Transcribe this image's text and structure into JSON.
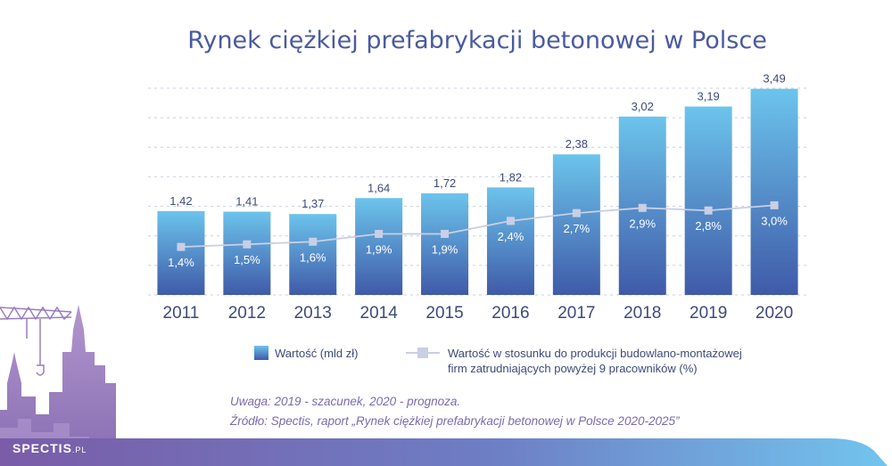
{
  "chart_data": {
    "type": "bar",
    "title": "Rynek ciężkiej prefabrykacji betonowej w Polsce",
    "categories": [
      "2011",
      "2012",
      "2013",
      "2014",
      "2015",
      "2016",
      "2017",
      "2018",
      "2019",
      "2020"
    ],
    "ylim": [
      0,
      3.5
    ],
    "grid": true,
    "series": [
      {
        "name": "Wartość (mld zł)",
        "type": "bar",
        "values": [
          1.42,
          1.41,
          1.37,
          1.64,
          1.72,
          1.82,
          2.38,
          3.02,
          3.19,
          3.49
        ],
        "labels": [
          "1,42",
          "1,41",
          "1,37",
          "1,64",
          "1,72",
          "1,82",
          "2,38",
          "3,02",
          "3,19",
          "3,49"
        ]
      },
      {
        "name_line1": "Wartość w stosunku do produkcji budowlano-montażowej",
        "name_line2": "firm zatrudniających powyżej 9 pracowników (%)",
        "type": "line",
        "values": [
          1.4,
          1.5,
          1.6,
          1.9,
          1.9,
          2.4,
          2.7,
          2.9,
          2.8,
          3.0
        ],
        "labels": [
          "1,4%",
          "1,5%",
          "1,6%",
          "1,9%",
          "1,9%",
          "2,4%",
          "2,7%",
          "2,9%",
          "2,8%",
          "3,0%"
        ]
      }
    ],
    "legend_position": "bottom",
    "notes": [
      "Uwaga: 2019 - szacunek, 2020 - prognoza.",
      "Źródło: Spectis, raport „Rynek ciężkiej prefabrykacji betonowej w Polsce 2020-2025”"
    ]
  },
  "brand": {
    "name": "SPECTIS",
    "suffix": ".PL"
  },
  "colors": {
    "title": "#4a5aa0",
    "bar_top": "#6cc4ec",
    "bar_bottom": "#3f5aa8",
    "line": "#c9cfe4",
    "marker": "#c9cfe4",
    "text": "#3d4a7a",
    "note": "#7a6aae",
    "footer_left": "#7a5ca8",
    "footer_right": "#72c4ee"
  }
}
